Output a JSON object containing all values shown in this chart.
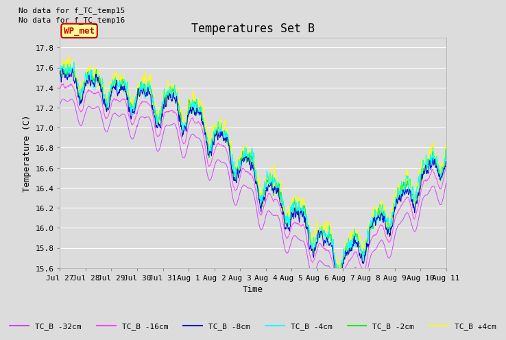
{
  "title": "Temperatures Set B",
  "xlabel": "Time",
  "ylabel": "Temperature (C)",
  "ylim": [
    15.6,
    17.9
  ],
  "no_data_text": [
    "No data for f_TC_temp15",
    "No data for f_TC_temp16"
  ],
  "wp_met_label": "WP_met",
  "wp_met_color": "#ffff99",
  "wp_met_border": "#cc0000",
  "wp_met_text_color": "#cc0000",
  "bg_color": "#dcdcdc",
  "plot_bg_color": "#dcdcdc",
  "series_colors": {
    "TC_B -32cm": "#cc44ff",
    "TC_B -16cm": "#ff44ff",
    "TC_B -8cm": "#0000dd",
    "TC_B -4cm": "#00ffff",
    "TC_B -2cm": "#00ee00",
    "TC_B +4cm": "#ffff00"
  },
  "x_tick_labels": [
    "Jul 27",
    "Jul 28",
    "Jul 29",
    "Jul 30",
    "Jul 31",
    "Aug 1",
    "Aug 2",
    "Aug 3",
    "Aug 4",
    "Aug 5",
    "Aug 6",
    "Aug 7",
    "Aug 8",
    "Aug 9",
    "Aug 10",
    "Aug 11"
  ],
  "n_points": 1500,
  "grid_color": "#ffffff",
  "font_family": "monospace",
  "title_fontsize": 12,
  "tick_fontsize": 8,
  "label_fontsize": 9
}
